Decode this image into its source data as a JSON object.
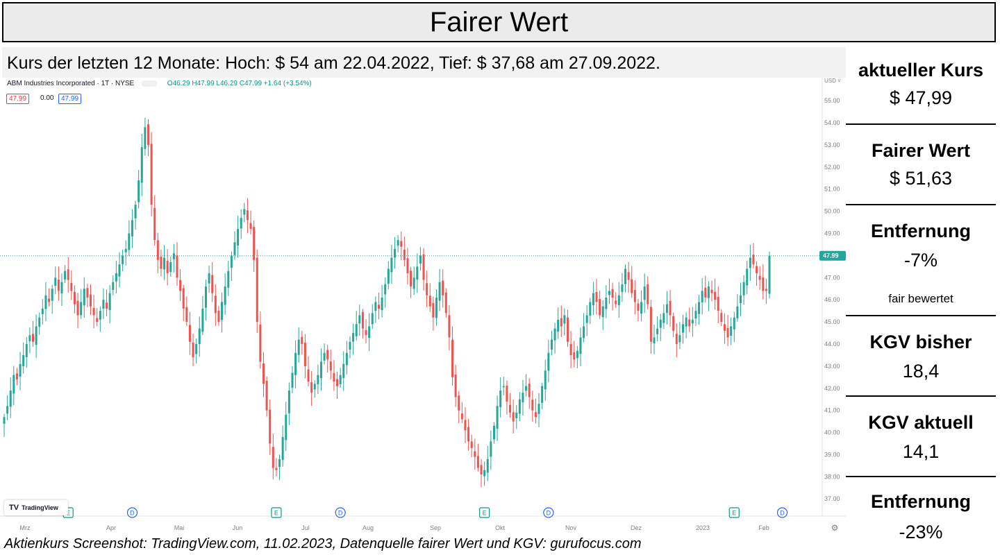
{
  "title": "Fairer Wert",
  "range_text": "Kurs der letzten 12 Monate: Hoch: $ 54 am 22.04.2022, Tief: $ 37,68 am 27.09.2022.",
  "source_text": "Aktienkurs Screenshot: TradingView.com, 11.02.2023, Datenquelle fairer Wert und KGV: gurufocus.com",
  "legend": {
    "symbol": "ABM Industries Incorporated · 1T · NYSE",
    "ohlc": "O46.29  H47.99  L46.29  C47.99  +1.64 (+3.54%)",
    "box1": "47.99",
    "box2": "0.00",
    "box3": "47.99"
  },
  "tradingview_logo": "TradingView",
  "panel": {
    "current_label": "aktueller Kurs",
    "current_value": "$ 47,99",
    "fair_label": "Fairer Wert",
    "fair_value": "$ 51,63",
    "distance_label": "Entfernung",
    "distance_value": "-7%",
    "rating": "fair bewertet",
    "pe_past_label": "KGV bisher",
    "pe_past_value": "18,4",
    "pe_now_label": "KGV aktuell",
    "pe_now_value": "14,1",
    "distance2_label": "Entfernung",
    "distance2_value": "-23%"
  },
  "colors": {
    "up": "#26a69a",
    "down": "#ef5350",
    "price_line": "#26a69a",
    "price_tag_bg": "#26a69a",
    "dividend_marker": "#2962ff",
    "earnings_marker": "#089981",
    "axis_text": "#7b7f8b",
    "panel_text": "#000000"
  },
  "chart_data": {
    "type": "candlestick",
    "currency": "USD",
    "ylim": [
      36.6,
      55.6
    ],
    "y_ticks": [
      "55.00",
      "54.00",
      "53.00",
      "52.00",
      "51.00",
      "50.00",
      "49.00",
      "48.00",
      "47.00",
      "46.00",
      "45.00",
      "44.00",
      "43.00",
      "42.00",
      "41.00",
      "40.00",
      "39.00",
      "38.00",
      "37.00"
    ],
    "x_ticks": [
      "Mrz",
      "Apr",
      "Mai",
      "Jun",
      "Jul",
      "Aug",
      "Sep",
      "Okt",
      "Nov",
      "Dez",
      "2023",
      "Feb"
    ],
    "last_price": 47.99,
    "last_price_label": "47.99",
    "high": {
      "value": 54,
      "date": "22.04.2022"
    },
    "low": {
      "value": 37.68,
      "date": "27.09.2022"
    },
    "markers": [
      {
        "kind": "E",
        "date_index": 20
      },
      {
        "kind": "D",
        "date_index": 40
      },
      {
        "kind": "E",
        "date_index": 85
      },
      {
        "kind": "D",
        "date_index": 105
      },
      {
        "kind": "E",
        "date_index": 150
      },
      {
        "kind": "D",
        "date_index": 170
      },
      {
        "kind": "E",
        "date_index": 228
      },
      {
        "kind": "D",
        "date_index": 243
      }
    ],
    "closes": [
      40.7,
      41.2,
      41.9,
      42.6,
      42.4,
      43.1,
      43.5,
      44.0,
      44.4,
      44.1,
      44.8,
      45.2,
      45.6,
      46.2,
      45.9,
      46.5,
      47.0,
      46.4,
      46.8,
      47.3,
      46.9,
      46.4,
      45.8,
      45.3,
      45.9,
      46.5,
      46.1,
      45.7,
      45.3,
      45.0,
      45.5,
      46.0,
      45.6,
      46.3,
      46.8,
      47.2,
      47.6,
      48.0,
      48.3,
      49.0,
      49.6,
      50.3,
      51.4,
      52.9,
      53.8,
      53.0,
      50.3,
      48.7,
      47.8,
      47.4,
      47.9,
      47.2,
      47.7,
      48.1,
      47.0,
      46.4,
      45.6,
      45.0,
      44.1,
      43.4,
      44.0,
      44.7,
      45.6,
      46.6,
      47.2,
      46.3,
      45.4,
      45.0,
      45.9,
      46.6,
      47.3,
      48.0,
      48.6,
      49.2,
      49.7,
      50.1,
      49.6,
      49.2,
      47.8,
      45.0,
      43.2,
      42.2,
      41.0,
      39.5,
      38.4,
      38.3,
      38.8,
      39.8,
      40.8,
      41.9,
      42.7,
      43.6,
      44.2,
      44.0,
      43.0,
      42.3,
      41.8,
      42.2,
      42.6,
      43.2,
      43.6,
      43.3,
      42.8,
      42.3,
      42.1,
      42.6,
      43.1,
      43.6,
      44.1,
      44.5,
      44.9,
      45.3,
      44.7,
      44.4,
      44.8,
      45.4,
      45.9,
      45.6,
      46.1,
      46.7,
      47.4,
      47.9,
      48.3,
      48.7,
      48.4,
      47.8,
      47.2,
      46.6,
      47.0,
      47.5,
      48.0,
      46.9,
      46.2,
      45.7,
      45.2,
      46.1,
      46.8,
      46.2,
      45.4,
      44.3,
      42.5,
      41.6,
      41.0,
      40.6,
      40.1,
      39.6,
      39.3,
      38.9,
      38.4,
      38.1,
      38.3,
      38.8,
      39.6,
      40.3,
      41.2,
      41.9,
      42.1,
      41.4,
      40.9,
      40.5,
      40.9,
      41.5,
      41.8,
      42.1,
      41.6,
      41.0,
      40.7,
      41.3,
      42.1,
      42.8,
      43.6,
      44.2,
      44.7,
      45.1,
      44.8,
      45.3,
      44.1,
      43.5,
      43.3,
      43.7,
      44.3,
      44.8,
      45.3,
      45.9,
      46.3,
      45.9,
      45.3,
      45.7,
      46.1,
      46.4,
      46.1,
      45.8,
      46.2,
      46.7,
      47.4,
      46.9,
      46.3,
      45.9,
      45.5,
      45.9,
      46.6,
      45.8,
      44.1,
      44.3,
      44.7,
      45.1,
      45.4,
      45.8,
      45.3,
      44.6,
      44.0,
      44.4,
      44.9,
      45.2,
      44.8,
      45.1,
      45.5,
      45.9,
      46.4,
      46.1,
      46.6,
      46.3,
      46.0,
      45.5,
      45.0,
      44.6,
      44.3,
      44.8,
      45.2,
      45.7,
      46.2,
      46.8,
      47.4,
      47.9,
      47.6,
      47.2,
      46.9,
      46.4,
      46.4,
      47.99
    ]
  }
}
